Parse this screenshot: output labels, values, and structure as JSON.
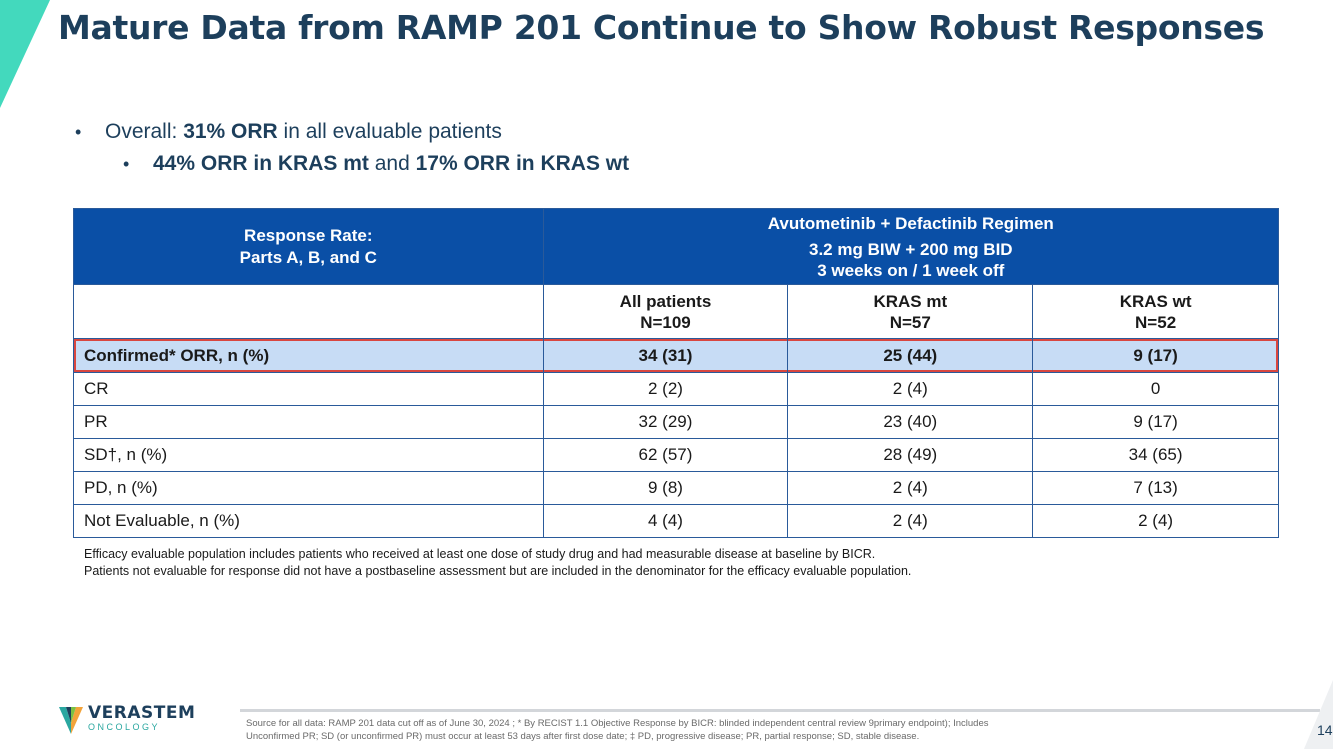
{
  "slide": {
    "title": "Mature Data from RAMP 201 Continue to Show Robust Responses",
    "accent_color": "#43d9bd",
    "title_color": "#1d3f5c"
  },
  "bullets": {
    "b1": {
      "prefix": "Overall: ",
      "bold": "31% ORR",
      "suffix": " in all evaluable patients"
    },
    "b2": {
      "bold1": "44% ORR in KRAS mt",
      "mid": " and ",
      "bold2": "17% ORR in KRAS wt"
    }
  },
  "table": {
    "header": {
      "row_label_line1": "Response Rate:",
      "row_label_line2": "Parts A, B, and C",
      "regimen_line1": "Avutometinib + Defactinib Regimen",
      "regimen_line2": "3.2 mg BIW + 200 mg BID",
      "regimen_line3": "3 weeks on / 1 week off"
    },
    "columns": [
      {
        "name": "All patients",
        "n": "N=109"
      },
      {
        "name": "KRAS mt",
        "n": "N=57"
      },
      {
        "name": "KRAS wt",
        "n": "N=52"
      }
    ],
    "rows": [
      {
        "label": "Confirmed* ORR, n (%)",
        "values": [
          "34 (31)",
          "25 (44)",
          "9 (17)"
        ]
      },
      {
        "label": "CR",
        "values": [
          "2 (2)",
          "2 (4)",
          "0"
        ]
      },
      {
        "label": "PR",
        "values": [
          "32 (29)",
          "23 (40)",
          "9 (17)"
        ]
      },
      {
        "label": "SD†, n (%)",
        "values": [
          "62 (57)",
          "28 (49)",
          "34 (65)"
        ]
      },
      {
        "label": "PD, n (%)",
        "values": [
          "9 (8)",
          "2 (4)",
          "7 (13)"
        ]
      },
      {
        "label": "Not Evaluable, n (%)",
        "values": [
          "4 (4)",
          "2 (4)",
          "2 (4)"
        ]
      }
    ],
    "header_bg": "#0a4fa6",
    "highlight_bg": "#c7dcf5",
    "highlight_border": "#d9463f"
  },
  "notes": {
    "line1": "Efficacy evaluable population includes patients who received at least one dose of study drug and had measurable disease at baseline by BICR.",
    "line2": "Patients not evaluable for response did not have a postbaseline assessment but are included in the denominator for the efficacy evaluable population."
  },
  "footer": {
    "source_line1": "Source for all data: RAMP 201 data cut off as of June 30, 2024 ; * By RECIST 1.1 Objective Response by BICR: blinded independent central review 9primary endpoint); Includes",
    "source_line2": "Unconfirmed PR; SD (or unconfirmed PR) must occur at least 53 days after first dose date; ‡ PD, progressive disease; PR, partial response; SD, stable disease.",
    "page_number": "14",
    "logo_word": "VERASTEM",
    "logo_sub": "ONCOLOGY",
    "logo_icon": "verastem-v-logo"
  }
}
